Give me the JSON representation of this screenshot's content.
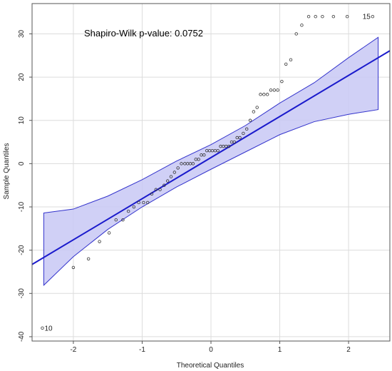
{
  "chart_data": {
    "type": "scatter",
    "xlabel": "Theoretical Quantiles",
    "ylabel": "Sample Quantiles",
    "xlim": [
      -2.6,
      2.6
    ],
    "ylim": [
      -41,
      37
    ],
    "xticks": [
      -2,
      -1,
      0,
      1,
      2
    ],
    "yticks": [
      -40,
      -30,
      -20,
      -10,
      0,
      10,
      20,
      30
    ],
    "grid": true,
    "annotation": "Shapiro-Wilk p-value:  0.0752",
    "reference_line": {
      "slope": 9.5,
      "intercept": 1.4
    },
    "confidence_band": {
      "x": [
        -2.43,
        -2.0,
        -1.5,
        -1.0,
        -0.5,
        0.0,
        0.5,
        1.0,
        1.5,
        2.0,
        2.43
      ],
      "lower": [
        -28.1,
        -21.5,
        -15.2,
        -10.0,
        -5.4,
        -1.3,
        2.7,
        6.7,
        9.7,
        11.4,
        12.5
      ],
      "upper": [
        -11.4,
        -10.5,
        -7.5,
        -3.7,
        0.6,
        4.4,
        8.8,
        14.0,
        18.7,
        24.5,
        29.2
      ]
    },
    "points": {
      "x": [
        -2.45,
        -2.0,
        -1.78,
        -1.62,
        -1.48,
        -1.38,
        -1.28,
        -1.2,
        -1.12,
        -1.05,
        -0.98,
        -0.92,
        -0.86,
        -0.8,
        -0.74,
        -0.68,
        -0.63,
        -0.58,
        -0.53,
        -0.48,
        -0.43,
        -0.38,
        -0.34,
        -0.3,
        -0.26,
        -0.22,
        -0.18,
        -0.14,
        -0.1,
        -0.06,
        -0.02,
        0.02,
        0.06,
        0.1,
        0.14,
        0.18,
        0.22,
        0.26,
        0.3,
        0.34,
        0.38,
        0.42,
        0.47,
        0.52,
        0.57,
        0.62,
        0.67,
        0.72,
        0.77,
        0.82,
        0.87,
        0.92,
        0.97,
        1.03,
        1.09,
        1.16,
        1.24,
        1.32,
        1.42,
        1.52,
        1.62,
        1.78,
        1.98,
        2.35
      ],
      "y": [
        -38,
        -24,
        -22,
        -18,
        -16,
        -13,
        -13,
        -11,
        -10,
        -9,
        -9,
        -9,
        -7,
        -6,
        -6,
        -5,
        -4,
        -3,
        -2,
        -1,
        0,
        0,
        0,
        0,
        0,
        1,
        1,
        2,
        2,
        3,
        3,
        3,
        3,
        3,
        4,
        4,
        4,
        4,
        5,
        5,
        6,
        6,
        7,
        8,
        10,
        12,
        13,
        16,
        16,
        16,
        17,
        17,
        17,
        19,
        23,
        24,
        30,
        32,
        34,
        34,
        34,
        34,
        34,
        34
      ]
    },
    "labeled_points": [
      {
        "label": "10",
        "x": -2.45,
        "y": -38
      },
      {
        "label": "15",
        "x": 2.35,
        "y": 34
      }
    ],
    "colors": {
      "line": "#1a1acc",
      "band_fill": "#c8c8f5",
      "band_edge": "#3333cc",
      "points": "#333333",
      "grid": "#dcdcdc",
      "frame": "#555555"
    }
  }
}
